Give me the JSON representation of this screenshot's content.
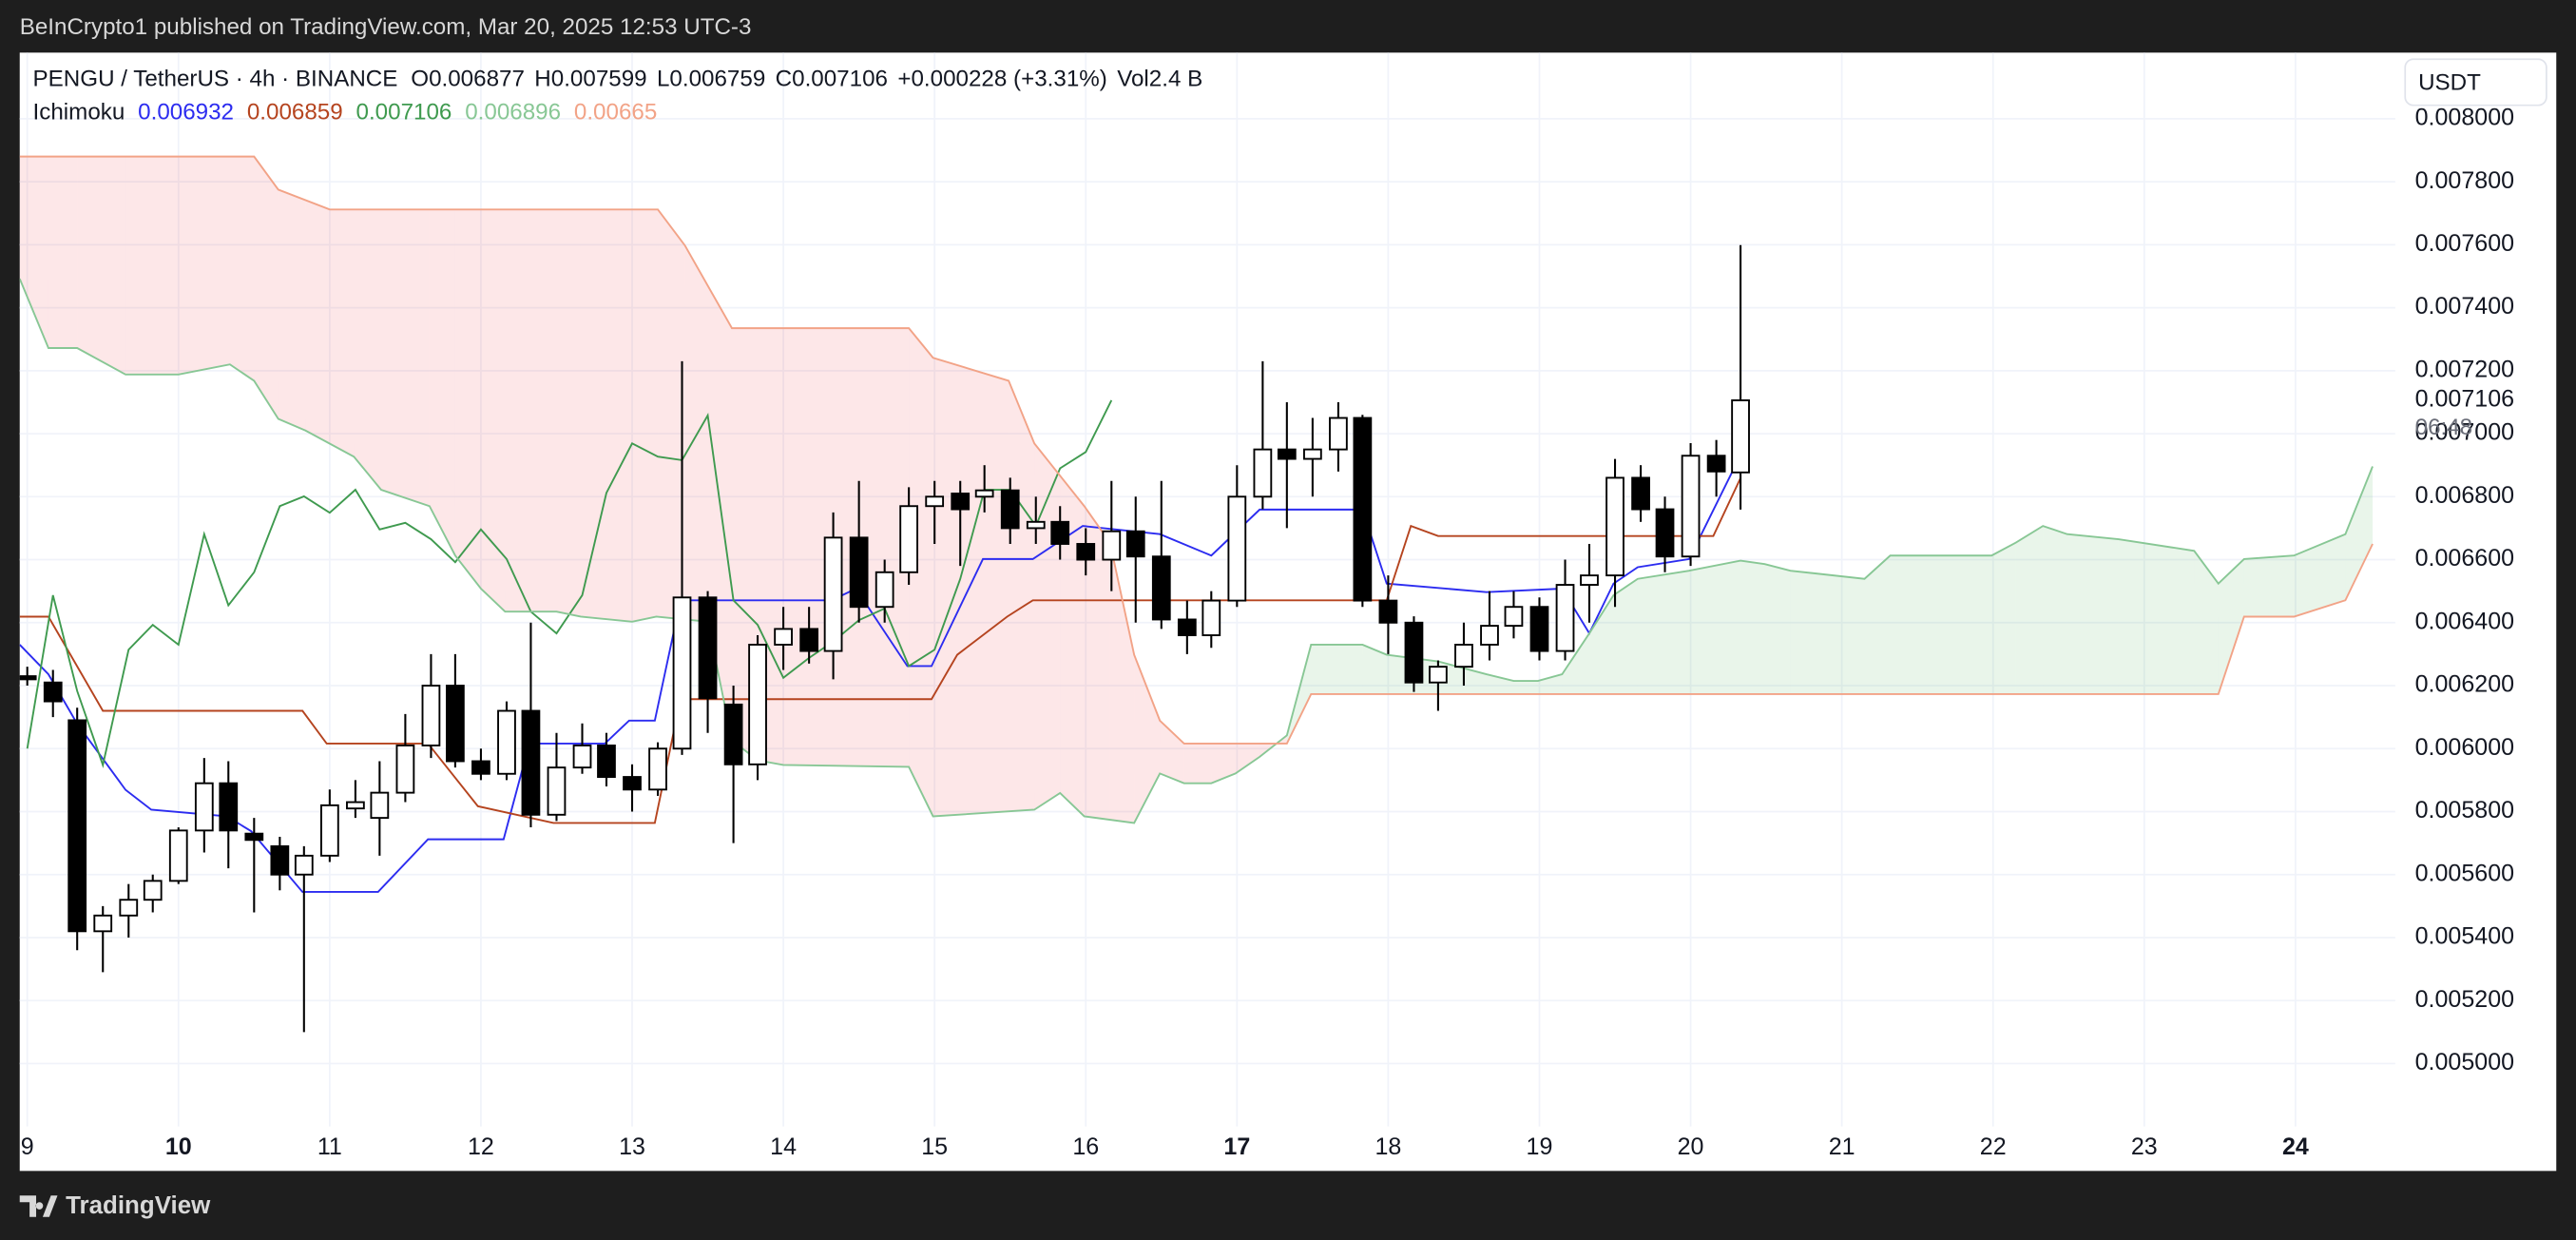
{
  "published": "BeInCrypto1 published on TradingView.com, Mar 20, 2025 12:53 UTC-3",
  "footer_brand": "TradingView",
  "chart_data": {
    "type": "candlestick",
    "currency": "USDT",
    "header": {
      "symbol": "PENGU / TetherUS · 4h · BINANCE",
      "stats": [
        {
          "key": "O",
          "value": "0.006877"
        },
        {
          "key": "H",
          "value": "0.007599"
        },
        {
          "key": "L",
          "value": "0.006759"
        },
        {
          "key": "C",
          "value": "0.007106"
        }
      ],
      "change": "+0.000228 (+3.31%)",
      "volume": {
        "key": "Vol",
        "value": "2.4 B"
      }
    },
    "up_color": "#ffffff",
    "down_color": "#000000",
    "wick_color": "#000000",
    "x": [
      9,
      9.17,
      9.33,
      9.5,
      9.67,
      9.83,
      10,
      10.17,
      10.33,
      10.5,
      10.67,
      10.83,
      11,
      11.17,
      11.33,
      11.5,
      11.67,
      11.83,
      12,
      12.17,
      12.33,
      12.5,
      12.67,
      12.83,
      13,
      13.17,
      13.33,
      13.5,
      13.67,
      13.83,
      14,
      14.17,
      14.33,
      14.5,
      14.67,
      14.83,
      15,
      15.17,
      15.33,
      15.5,
      15.67,
      15.83,
      16,
      16.17,
      16.33,
      16.5,
      16.67,
      16.83,
      17,
      17.17,
      17.33,
      17.5,
      17.67,
      17.83,
      18,
      18.17,
      18.33,
      18.5,
      18.67,
      18.83,
      19,
      19.17,
      19.33,
      19.5,
      19.67,
      19.83,
      20,
      20.17,
      20.33
    ],
    "open": [
      0.00623,
      0.00621,
      0.00609,
      0.00542,
      0.00547,
      0.00552,
      0.00558,
      0.00574,
      0.00589,
      0.00573,
      0.00569,
      0.0056,
      0.00566,
      0.00581,
      0.00578,
      0.00586,
      0.00601,
      0.0062,
      0.00596,
      0.00592,
      0.00612,
      0.00579,
      0.00594,
      0.00601,
      0.00591,
      0.00587,
      0.006,
      0.00648,
      0.00614,
      0.00595,
      0.00633,
      0.00638,
      0.00631,
      0.00667,
      0.00645,
      0.00656,
      0.00677,
      0.00681,
      0.0068,
      0.00682,
      0.0067,
      0.00672,
      0.00665,
      0.0066,
      0.00669,
      0.00661,
      0.00641,
      0.00636,
      0.00647,
      0.0068,
      0.00695,
      0.00692,
      0.00695,
      0.00705,
      0.00647,
      0.0064,
      0.00621,
      0.00626,
      0.00633,
      0.00639,
      0.00645,
      0.00631,
      0.00652,
      0.00655,
      0.00686,
      0.00676,
      0.00661,
      0.00693,
      0.006877
    ],
    "high": [
      0.00626,
      0.00625,
      0.00613,
      0.0055,
      0.00557,
      0.0056,
      0.00575,
      0.00597,
      0.00596,
      0.00578,
      0.00572,
      0.00569,
      0.00587,
      0.0059,
      0.00596,
      0.00611,
      0.0063,
      0.0063,
      0.006,
      0.00615,
      0.0064,
      0.00605,
      0.00608,
      0.00605,
      0.00595,
      0.00602,
      0.00723,
      0.0065,
      0.0062,
      0.00636,
      0.00645,
      0.00645,
      0.00675,
      0.00685,
      0.0066,
      0.00683,
      0.00685,
      0.00685,
      0.0069,
      0.00686,
      0.0068,
      0.00677,
      0.0067,
      0.00685,
      0.0068,
      0.00685,
      0.00647,
      0.0065,
      0.0069,
      0.00723,
      0.0071,
      0.00705,
      0.0071,
      0.00706,
      0.00655,
      0.00642,
      0.00628,
      0.0064,
      0.0065,
      0.0065,
      0.00648,
      0.0066,
      0.00665,
      0.00692,
      0.0069,
      0.0068,
      0.00697,
      0.00698,
      0.007599
    ],
    "low": [
      0.0062,
      0.0061,
      0.00536,
      0.00529,
      0.0054,
      0.00548,
      0.00557,
      0.00567,
      0.00562,
      0.00548,
      0.00555,
      0.0051,
      0.00564,
      0.00578,
      0.00566,
      0.00583,
      0.00597,
      0.00594,
      0.0059,
      0.0059,
      0.00575,
      0.00577,
      0.00592,
      0.00588,
      0.0058,
      0.00585,
      0.00598,
      0.00605,
      0.0057,
      0.0059,
      0.00625,
      0.00627,
      0.00622,
      0.0064,
      0.0064,
      0.00652,
      0.00665,
      0.00658,
      0.00675,
      0.00665,
      0.00665,
      0.0066,
      0.00655,
      0.0065,
      0.0064,
      0.00638,
      0.0063,
      0.00632,
      0.00645,
      0.00676,
      0.0067,
      0.0068,
      0.00688,
      0.00645,
      0.0063,
      0.00618,
      0.00612,
      0.0062,
      0.00628,
      0.00635,
      0.00628,
      0.00628,
      0.0064,
      0.00645,
      0.00672,
      0.00656,
      0.00658,
      0.0068,
      0.006759
    ],
    "close": [
      0.00622,
      0.00615,
      0.00542,
      0.00547,
      0.00552,
      0.00558,
      0.00574,
      0.00589,
      0.00574,
      0.00571,
      0.0056,
      0.00566,
      0.00582,
      0.00583,
      0.00586,
      0.00601,
      0.0062,
      0.00596,
      0.00592,
      0.00612,
      0.00579,
      0.00594,
      0.00601,
      0.00591,
      0.00587,
      0.006,
      0.00648,
      0.00616,
      0.00595,
      0.00633,
      0.00638,
      0.00631,
      0.00667,
      0.00645,
      0.00656,
      0.00677,
      0.0068,
      0.00676,
      0.00682,
      0.0067,
      0.00672,
      0.00665,
      0.0066,
      0.00669,
      0.00661,
      0.00641,
      0.00636,
      0.00647,
      0.0068,
      0.00695,
      0.00692,
      0.00695,
      0.00705,
      0.00647,
      0.0064,
      0.00621,
      0.00626,
      0.00633,
      0.00639,
      0.00645,
      0.00631,
      0.00652,
      0.00655,
      0.00686,
      0.00676,
      0.00661,
      0.00693,
      0.00688,
      0.007106
    ],
    "ichimoku": {
      "label": "Ichimoku",
      "cloud": {
        "up_color": "rgba(76,175,80,0.12)",
        "down_color": "rgba(242,54,69,0.12)"
      },
      "lines": [
        {
          "color": "#2c2cf0",
          "last": 0.006932,
          "x": [
            8.95,
            9.14,
            9.33,
            9.65,
            9.82,
            10.32,
            10.48,
            10.82,
            11.32,
            11.65,
            12.15,
            12.32,
            12.82,
            12.98,
            13.15,
            13.32,
            14.32,
            14.48,
            14.82,
            14.98,
            15.32,
            15.65,
            15.98,
            16.49,
            16.83,
            17.15,
            17.83,
            17.99,
            18.65,
            19.15,
            19.33,
            19.49,
            19.65,
            19.99,
            20.33
          ],
          "values": [
            0.00633,
            0.006236,
            0.006079,
            0.005869,
            0.005806,
            0.005785,
            0.005738,
            0.005545,
            0.005545,
            0.005712,
            0.005712,
            0.006016,
            0.006016,
            0.006089,
            0.006089,
            0.006471,
            0.006471,
            0.006508,
            0.006262,
            0.006262,
            0.006602,
            0.006602,
            0.006707,
            0.006681,
            0.006613,
            0.006759,
            0.006759,
            0.006524,
            0.006497,
            0.006508,
            0.006366,
            0.006524,
            0.006576,
            0.006602,
            0.006932
          ]
        },
        {
          "color": "#b5441f",
          "last": 0.006859,
          "x": [
            8.95,
            9.14,
            9.5,
            10.82,
            10.98,
            11.65,
            11.98,
            12.48,
            13.15,
            13.32,
            14.98,
            15.15,
            15.48,
            15.65,
            17.99,
            18.15,
            18.33,
            20.15,
            20.33
          ],
          "values": [
            0.006419,
            0.006419,
            0.00612,
            0.00612,
            0.006016,
            0.006016,
            0.005817,
            0.005764,
            0.005764,
            0.006157,
            0.006157,
            0.006298,
            0.006419,
            0.006471,
            0.006471,
            0.006707,
            0.006675,
            0.006675,
            0.006859
          ]
        },
        {
          "color": "#3f9a4f",
          "last": 0.007106,
          "x": [
            9,
            9.17,
            9.33,
            9.5,
            9.67,
            9.83,
            10,
            10.17,
            10.33,
            10.5,
            10.67,
            10.83,
            11,
            11.17,
            11.33,
            11.5,
            11.67,
            11.83,
            12,
            12.17,
            12.33,
            12.5,
            12.67,
            12.83,
            13,
            13.17,
            13.33,
            13.5,
            13.67,
            13.83,
            14,
            14.17,
            14.33,
            14.5,
            14.67,
            14.83,
            15,
            15.17,
            15.33,
            15.5,
            15.67,
            15.83,
            16,
            16.17
          ],
          "values": [
            0.006,
            0.006487,
            0.006183,
            0.005948,
            0.006314,
            0.006393,
            0.00633,
            0.006681,
            0.006455,
            0.00656,
            0.00677,
            0.006801,
            0.006749,
            0.006822,
            0.006696,
            0.006717,
            0.006665,
            0.006592,
            0.006696,
            0.006602,
            0.006435,
            0.006366,
            0.006487,
            0.006812,
            0.006969,
            0.006927,
            0.006916,
            0.007058,
            0.006471,
            0.006393,
            0.006225,
            0.006288,
            0.00634,
            0.006408,
            0.006445,
            0.006262,
            0.006314,
            0.006539,
            0.006822,
            0.006822,
            0.006707,
            0.00689,
            0.006942,
            0.007106
          ]
        },
        {
          "color": "#88c795",
          "last": 0.006896,
          "x": [
            8.95,
            9.14,
            9.33,
            9.65,
            10,
            10.34,
            10.5,
            10.66,
            10.84,
            11.16,
            11.34,
            11.66,
            11.83,
            12,
            12.16,
            12.5,
            12.66,
            13,
            13.16,
            13.5,
            13.66,
            13.83,
            14,
            14.83,
            14.99,
            15.66,
            15.83,
            15.99,
            16.32,
            16.49,
            16.65,
            16.83,
            16.99,
            17.15,
            17.33,
            17.49,
            17.83,
            17.99,
            18.33,
            18.65,
            18.83,
            18.99,
            19.15,
            19.33,
            19.49,
            19.65,
            19.99,
            20.33,
            20.49,
            20.66,
            21.15,
            21.32,
            21.99,
            22.15,
            22.33,
            22.49,
            22.83,
            23.33,
            23.49,
            23.66,
            23.99,
            24.33,
            24.51
          ],
          "values": [
            0.007492,
            0.007272,
            0.007272,
            0.007188,
            0.007188,
            0.00722,
            0.007168,
            0.007047,
            0.00701,
            0.006927,
            0.006822,
            0.00677,
            0.006613,
            0.006508,
            0.006435,
            0.006435,
            0.006419,
            0.006403,
            0.006419,
            0.006403,
            0.006026,
            0.005963,
            0.005948,
            0.005942,
            0.005785,
            0.005806,
            0.005859,
            0.005785,
            0.005764,
            0.005921,
            0.00589,
            0.00589,
            0.005921,
            0.005974,
            0.006042,
            0.00633,
            0.00633,
            0.006298,
            0.006277,
            0.006236,
            0.006215,
            0.006215,
            0.006236,
            0.006366,
            0.006487,
            0.006539,
            0.006565,
            0.006597,
            0.006586,
            0.006565,
            0.006539,
            0.006613,
            0.006613,
            0.006654,
            0.006707,
            0.006681,
            0.006665,
            0.006628,
            0.006524,
            0.006602,
            0.006613,
            0.006681,
            0.006896
          ]
        },
        {
          "color": "#f2a387",
          "last": 0.00665,
          "x": [
            8.95,
            10.5,
            10.66,
            11,
            13.17,
            13.35,
            13.66,
            14.83,
            14.99,
            15.49,
            15.66,
            15.99,
            16.16,
            16.32,
            16.49,
            16.65,
            17.33,
            17.49,
            23.49,
            23.66,
            23.99,
            24.33,
            24.51
          ],
          "values": [
            0.00788,
            0.00788,
            0.007775,
            0.007712,
            0.007712,
            0.007597,
            0.007335,
            0.007335,
            0.007241,
            0.007168,
            0.006969,
            0.00677,
            0.006654,
            0.006298,
            0.006089,
            0.006016,
            0.006016,
            0.006173,
            0.006173,
            0.006419,
            0.006419,
            0.006471,
            0.00665
          ]
        }
      ]
    },
    "last_price": {
      "value": 0.007106,
      "label": "0.007106",
      "countdown": "06:48"
    },
    "xlim": [
      8.95,
      24.66
    ],
    "xticks": [
      9,
      10,
      11,
      12,
      13,
      14,
      15,
      16,
      17,
      18,
      19,
      20,
      21,
      22,
      23,
      24
    ],
    "bold_xticks": [
      10,
      17,
      24
    ],
    "ylim": [
      0.0048,
      0.00821
    ],
    "yticks": [
      {
        "value": 0.005,
        "label": "0.005000"
      },
      {
        "value": 0.0052,
        "label": "0.005200"
      },
      {
        "value": 0.0054,
        "label": "0.005400"
      },
      {
        "value": 0.0056,
        "label": "0.005600"
      },
      {
        "value": 0.0058,
        "label": "0.005800"
      },
      {
        "value": 0.006,
        "label": "0.006000"
      },
      {
        "value": 0.0062,
        "label": "0.006200"
      },
      {
        "value": 0.0064,
        "label": "0.006400"
      },
      {
        "value": 0.0066,
        "label": "0.006600"
      },
      {
        "value": 0.0068,
        "label": "0.006800"
      },
      {
        "value": 0.007,
        "label": "0.007000"
      },
      {
        "value": 0.0072,
        "label": "0.007200"
      },
      {
        "value": 0.0074,
        "label": "0.007400"
      },
      {
        "value": 0.0076,
        "label": "0.007600"
      },
      {
        "value": 0.0078,
        "label": "0.007800"
      },
      {
        "value": 0.008,
        "label": "0.008000"
      }
    ],
    "grid": true
  }
}
